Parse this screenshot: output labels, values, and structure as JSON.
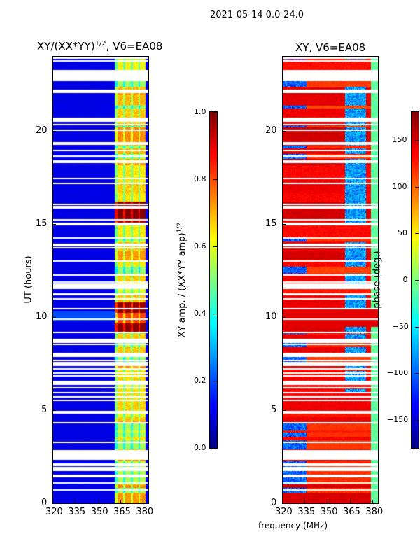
{
  "suptitle": "2021-05-14 0.0-24.0",
  "xlabel": "frequency (MHz)",
  "chart_data": [
    {
      "type": "heatmap",
      "title": "XY/(XX*YY)^1/2, V6=EA08",
      "title_main": "XY/(XX*YY)",
      "title_sup": "1/2",
      "title_tail": ", V6=EA08",
      "xlabel": "frequency (MHz)",
      "ylabel": "UT (hours)",
      "xlim": [
        320,
        384
      ],
      "ylim": [
        0,
        24
      ],
      "xticks": [
        320,
        335,
        350,
        365,
        380
      ],
      "yticks": [
        0,
        5,
        10,
        15,
        20
      ],
      "colormap": "jet",
      "colorbar": {
        "label_main": "XY amp. / (XX*YY amp)",
        "label_sup": "1/2",
        "range": [
          0.0,
          1.0
        ],
        "ticks": [
          "0.0",
          "0.2",
          "0.4",
          "0.6",
          "0.8",
          "1.0"
        ]
      },
      "description_values": "mostly ~0.1 below 362 MHz; 0.3-0.7 in 362-382 MHz band; peaks ~0.85 near UT 9.5-10.5 and 15-16"
    },
    {
      "type": "heatmap",
      "title": "XY, V6=EA08",
      "xlabel": "frequency (MHz)",
      "ylabel": "",
      "xlim": [
        320,
        384
      ],
      "ylim": [
        0,
        24
      ],
      "xticks": [
        320,
        335,
        350,
        365,
        380
      ],
      "yticks": [
        0,
        5,
        10,
        15,
        20
      ],
      "colormap": "jet",
      "colorbar": {
        "label": "phase (deg.)",
        "range": [
          -180,
          180
        ],
        "ticks": [
          "−150",
          "−100",
          "−50",
          "0",
          "50",
          "100",
          "150"
        ]
      },
      "description_values": "phase mostly 90-150 deg; blue (-150) patches at 320-335 MHz and 362-375 MHz; ~-30 near 380 MHz"
    }
  ]
}
